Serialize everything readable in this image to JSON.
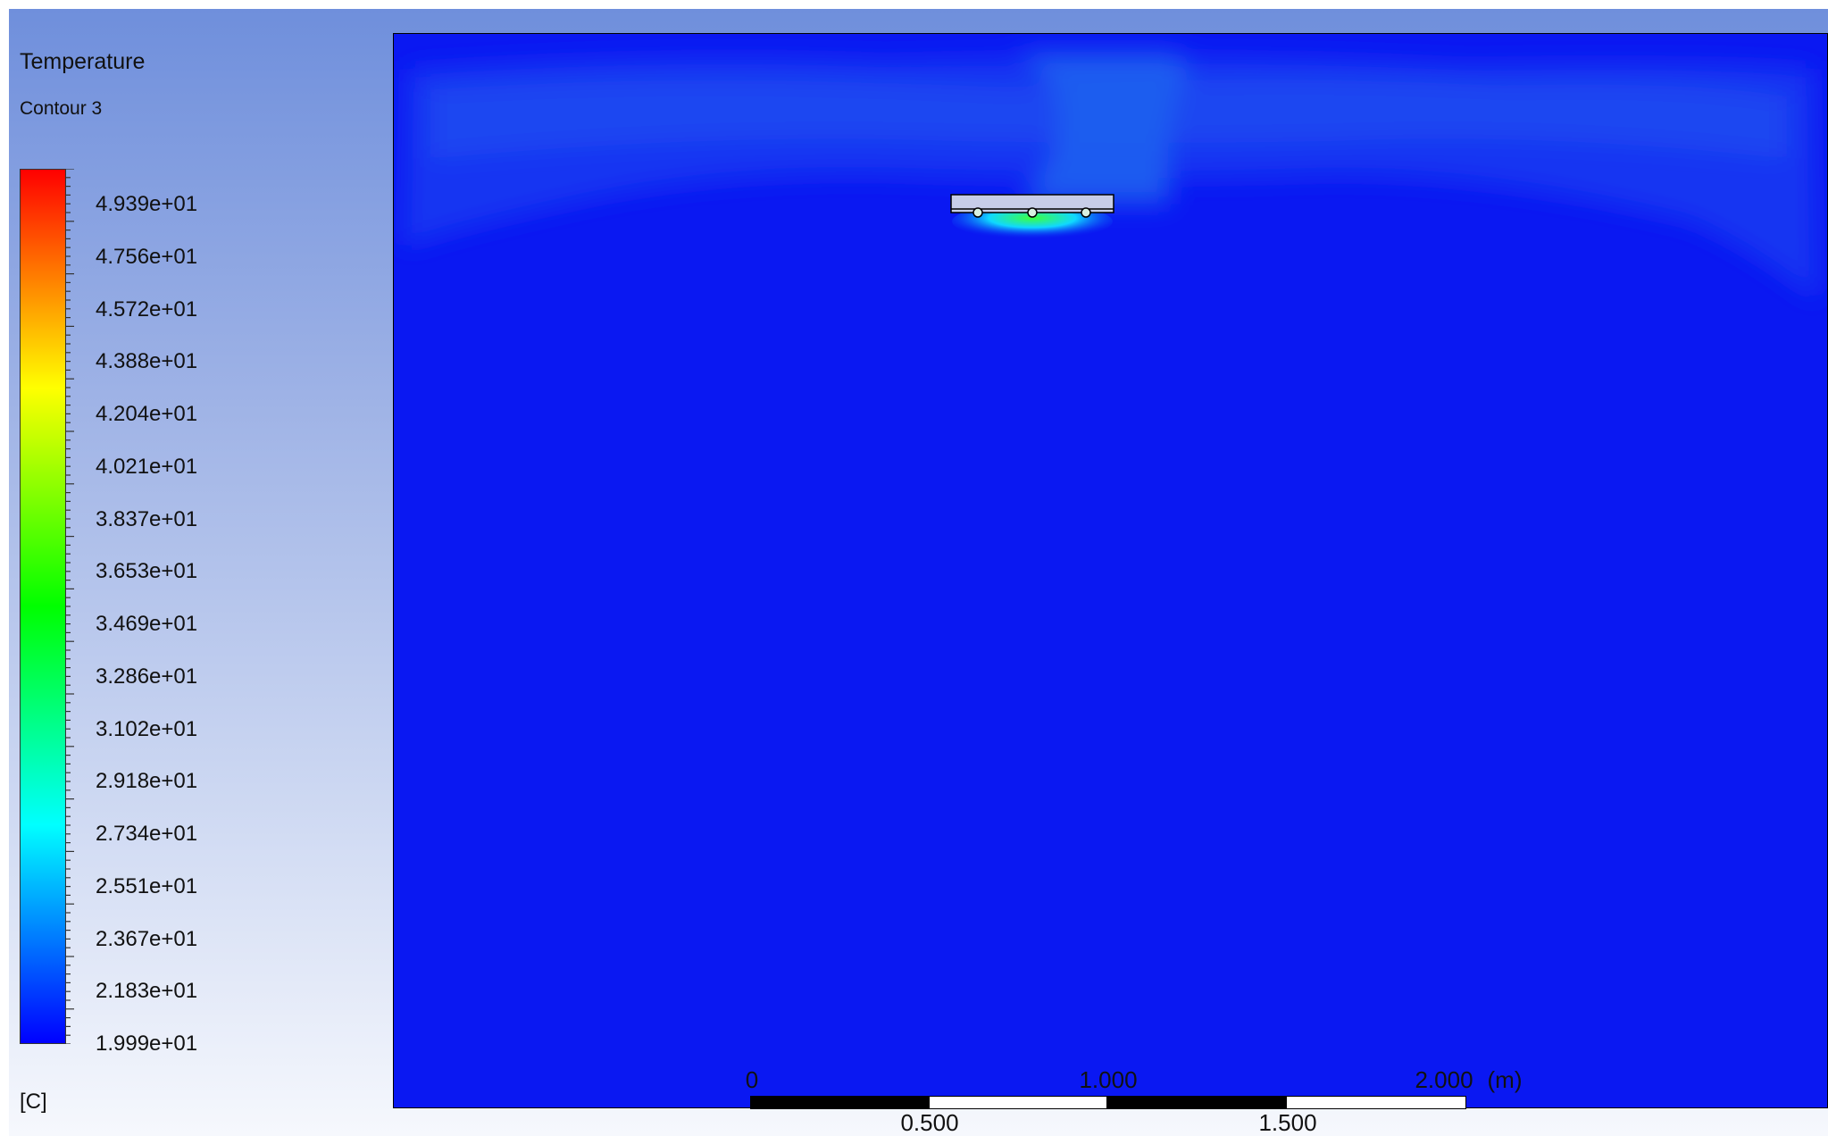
{
  "legend": {
    "variable": "Temperature",
    "name": "Contour 3",
    "unit": "[C]",
    "labels": [
      "4.939e+01",
      "4.756e+01",
      "4.572e+01",
      "4.388e+01",
      "4.204e+01",
      "4.021e+01",
      "3.837e+01",
      "3.653e+01",
      "3.469e+01",
      "3.286e+01",
      "3.102e+01",
      "2.918e+01",
      "2.734e+01",
      "2.551e+01",
      "2.367e+01",
      "2.183e+01",
      "1.999e+01"
    ],
    "colors": [
      "#0000ff",
      "#0080ff",
      "#00ffff",
      "#00ff80",
      "#00ff00",
      "#80ff00",
      "#ffff00",
      "#ff8000",
      "#ff0000"
    ]
  },
  "scale_bar": {
    "top_labels": [
      "0",
      "1.000",
      "2.000"
    ],
    "bottom_labels": [
      "0.500",
      "1.500"
    ],
    "unit": "(m)"
  },
  "domain": {
    "fill_color": "#0a18f2",
    "plume_color": "#1a4cf0",
    "heater_glow_colors": [
      "#3cff40",
      "#10d8ff"
    ]
  }
}
